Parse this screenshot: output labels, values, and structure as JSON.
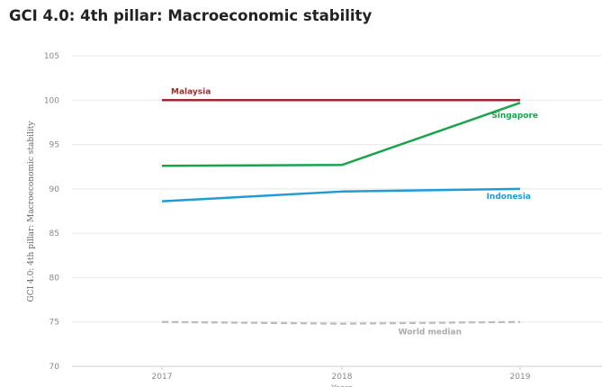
{
  "chart_data": {
    "type": "line",
    "title": "GCI 4.0: 4th pillar: Macroeconomic stability",
    "xlabel": "Years",
    "ylabel": "GCI 4.0: 4th pillar: Macroeconomic stability",
    "categories": [
      "2017",
      "2018",
      "2019"
    ],
    "ylim": [
      70,
      105
    ],
    "yticks": [
      70,
      75,
      80,
      85,
      90,
      95,
      100,
      105
    ],
    "grid": true,
    "series": [
      {
        "name": "Malaysia",
        "values": [
          100,
          100,
          100
        ],
        "color": "#9e2a2b",
        "dashed": false,
        "label_at": 0
      },
      {
        "name": "Singapore",
        "values": [
          92.6,
          92.7,
          99.7
        ],
        "color": "#1aa34a",
        "dashed": false,
        "label_at": 2
      },
      {
        "name": "Indonesia",
        "values": [
          88.6,
          89.7,
          90.0
        ],
        "color": "#1f9bd7",
        "dashed": false,
        "label_at": 2
      },
      {
        "name": "World median",
        "values": [
          75.0,
          74.8,
          75.0
        ],
        "color": "#bbbbbb",
        "dashed": true,
        "label_at": 2
      }
    ]
  }
}
